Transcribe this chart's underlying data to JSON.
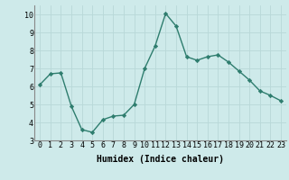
{
  "x": [
    0,
    1,
    2,
    3,
    4,
    5,
    6,
    7,
    8,
    9,
    10,
    11,
    12,
    13,
    14,
    15,
    16,
    17,
    18,
    19,
    20,
    21,
    22,
    23
  ],
  "y": [
    6.1,
    6.7,
    6.75,
    4.9,
    3.6,
    3.45,
    4.15,
    4.35,
    4.4,
    5.0,
    7.0,
    8.25,
    10.05,
    9.35,
    7.65,
    7.45,
    7.65,
    7.75,
    7.35,
    6.85,
    6.35,
    5.75,
    5.5,
    5.2
  ],
  "line_color": "#2e7d6e",
  "marker": "D",
  "markersize": 2.2,
  "linewidth": 1.0,
  "bg_color": "#ceeaea",
  "grid_color": "#b8d8d8",
  "xlabel": "Humidex (Indice chaleur)",
  "xlabel_fontsize": 7,
  "tick_fontsize": 6,
  "ylim": [
    3,
    10.5
  ],
  "xlim": [
    -0.5,
    23.5
  ],
  "yticks": [
    3,
    4,
    5,
    6,
    7,
    8,
    9,
    10
  ],
  "xticks": [
    0,
    1,
    2,
    3,
    4,
    5,
    6,
    7,
    8,
    9,
    10,
    11,
    12,
    13,
    14,
    15,
    16,
    17,
    18,
    19,
    20,
    21,
    22,
    23
  ]
}
